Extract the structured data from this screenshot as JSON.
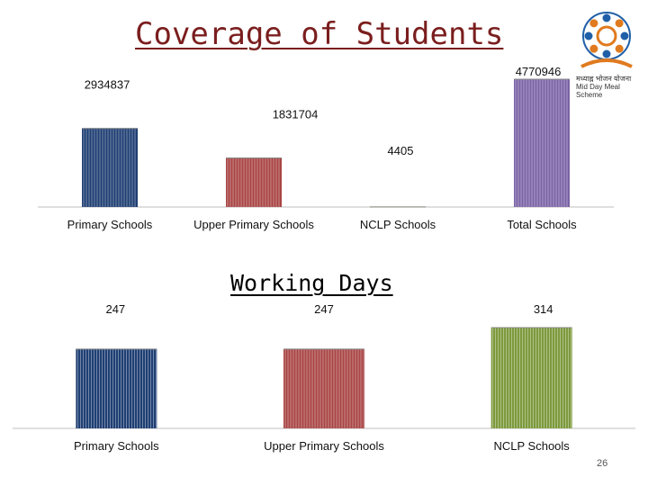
{
  "slide": {
    "page_number": "26"
  },
  "logo": {
    "line1": "मध्याह्न भोजन योजना",
    "line2": "Mid Day Meal Scheme"
  },
  "colors": {
    "primary": "#1f3f73",
    "upper": "#a94444",
    "nclp": "#7c9a3c",
    "total": "#7b63a6",
    "title": "#7b1e1e"
  },
  "chart_data": [
    {
      "type": "bar",
      "title": "Coverage of Students",
      "categories": [
        "Primary Schools",
        "Upper Primary Schools",
        "NCLP Schools",
        "Total Schools"
      ],
      "values": [
        2934837,
        1831704,
        4405,
        4770946
      ],
      "value_labels": [
        "2934837",
        "1831704",
        "4405",
        "4770946"
      ],
      "ylim": [
        0,
        4770946
      ],
      "grid": false
    },
    {
      "type": "bar",
      "title": "Working Days",
      "categories": [
        "Primary Schools",
        "Upper Primary Schools",
        "NCLP Schools"
      ],
      "values": [
        247,
        247,
        314
      ],
      "value_labels": [
        "247",
        "247",
        "314"
      ],
      "ylim": [
        0,
        314
      ],
      "grid": false
    }
  ]
}
